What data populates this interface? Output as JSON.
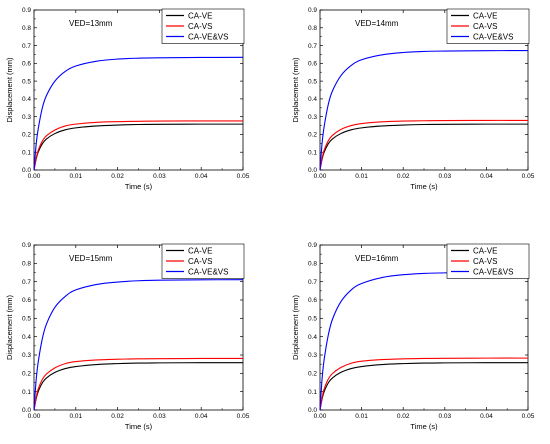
{
  "chart_data": [
    {
      "type": "line",
      "annotation": "VED=13mm",
      "xlabel": "Time (s)",
      "ylabel": "Displacement (mm)",
      "xlim": [
        0,
        0.05
      ],
      "ylim": [
        0,
        0.9
      ],
      "xticks": [
        "0.00",
        "0.01",
        "0.02",
        "0.03",
        "0.04",
        "0.05"
      ],
      "yticks": [
        "0.0",
        "0.1",
        "0.2",
        "0.3",
        "0.4",
        "0.5",
        "0.6",
        "0.7",
        "0.8",
        "0.9"
      ],
      "legend_position": "top-right",
      "series": [
        {
          "name": "CA-VE",
          "color": "#000000",
          "x": [
            0,
            0.0005,
            0.001,
            0.002,
            0.003,
            0.005,
            0.0075,
            0.01,
            0.015,
            0.02,
            0.025,
            0.03,
            0.04,
            0.05
          ],
          "y": [
            0,
            0.06,
            0.1,
            0.148,
            0.175,
            0.205,
            0.226,
            0.237,
            0.248,
            0.253,
            0.256,
            0.257,
            0.258,
            0.258
          ]
        },
        {
          "name": "CA-VS",
          "color": "#ff0000",
          "x": [
            0,
            0.0005,
            0.001,
            0.002,
            0.003,
            0.005,
            0.0075,
            0.01,
            0.015,
            0.02,
            0.025,
            0.03,
            0.04,
            0.05
          ],
          "y": [
            0,
            0.065,
            0.11,
            0.163,
            0.193,
            0.225,
            0.248,
            0.258,
            0.268,
            0.272,
            0.274,
            0.275,
            0.276,
            0.276
          ]
        },
        {
          "name": "CA-VE&VS",
          "color": "#0000ff",
          "x": [
            0,
            0.0005,
            0.001,
            0.002,
            0.003,
            0.005,
            0.0075,
            0.01,
            0.015,
            0.02,
            0.025,
            0.03,
            0.04,
            0.05
          ],
          "y": [
            0,
            0.14,
            0.23,
            0.35,
            0.42,
            0.5,
            0.555,
            0.585,
            0.612,
            0.624,
            0.629,
            0.631,
            0.633,
            0.634
          ]
        }
      ]
    },
    {
      "type": "line",
      "annotation": "VED=14mm",
      "xlabel": "Time (s)",
      "ylabel": "Displacement (mm)",
      "xlim": [
        0,
        0.05
      ],
      "ylim": [
        0,
        0.9
      ],
      "xticks": [
        "0.00",
        "0.01",
        "0.02",
        "0.03",
        "0.04",
        "0.05"
      ],
      "yticks": [
        "0.0",
        "0.1",
        "0.2",
        "0.3",
        "0.4",
        "0.5",
        "0.6",
        "0.7",
        "0.8",
        "0.9"
      ],
      "legend_position": "top-right",
      "series": [
        {
          "name": "CA-VE",
          "color": "#000000",
          "x": [
            0,
            0.0005,
            0.001,
            0.002,
            0.003,
            0.005,
            0.0075,
            0.01,
            0.015,
            0.02,
            0.025,
            0.03,
            0.04,
            0.05
          ],
          "y": [
            0,
            0.06,
            0.1,
            0.148,
            0.175,
            0.205,
            0.226,
            0.237,
            0.248,
            0.253,
            0.256,
            0.257,
            0.258,
            0.258
          ]
        },
        {
          "name": "CA-VS",
          "color": "#ff0000",
          "x": [
            0,
            0.0005,
            0.001,
            0.002,
            0.003,
            0.005,
            0.0075,
            0.01,
            0.015,
            0.02,
            0.025,
            0.03,
            0.04,
            0.05
          ],
          "y": [
            0,
            0.066,
            0.112,
            0.165,
            0.195,
            0.228,
            0.25,
            0.261,
            0.271,
            0.275,
            0.277,
            0.278,
            0.279,
            0.279
          ]
        },
        {
          "name": "CA-VE&VS",
          "color": "#0000ff",
          "x": [
            0,
            0.0005,
            0.001,
            0.002,
            0.003,
            0.005,
            0.0075,
            0.01,
            0.015,
            0.02,
            0.025,
            0.03,
            0.04,
            0.05
          ],
          "y": [
            0,
            0.15,
            0.245,
            0.37,
            0.445,
            0.53,
            0.588,
            0.62,
            0.648,
            0.661,
            0.667,
            0.669,
            0.671,
            0.672
          ]
        }
      ]
    },
    {
      "type": "line",
      "annotation": "VED=15mm",
      "xlabel": "Time (s)",
      "ylabel": "Displacement (mm)",
      "xlim": [
        0,
        0.05
      ],
      "ylim": [
        0,
        0.9
      ],
      "xticks": [
        "0.00",
        "0.01",
        "0.02",
        "0.03",
        "0.04",
        "0.05"
      ],
      "yticks": [
        "0.0",
        "0.1",
        "0.2",
        "0.3",
        "0.4",
        "0.5",
        "0.6",
        "0.7",
        "0.8",
        "0.9"
      ],
      "legend_position": "top-right",
      "series": [
        {
          "name": "CA-VE",
          "color": "#000000",
          "x": [
            0,
            0.0005,
            0.001,
            0.002,
            0.003,
            0.005,
            0.0075,
            0.01,
            0.015,
            0.02,
            0.025,
            0.03,
            0.04,
            0.05
          ],
          "y": [
            0,
            0.06,
            0.1,
            0.148,
            0.175,
            0.205,
            0.226,
            0.237,
            0.248,
            0.253,
            0.256,
            0.257,
            0.258,
            0.258
          ]
        },
        {
          "name": "CA-VS",
          "color": "#ff0000",
          "x": [
            0,
            0.0005,
            0.001,
            0.002,
            0.003,
            0.005,
            0.0075,
            0.01,
            0.015,
            0.02,
            0.025,
            0.03,
            0.04,
            0.05
          ],
          "y": [
            0,
            0.067,
            0.114,
            0.167,
            0.197,
            0.23,
            0.253,
            0.264,
            0.273,
            0.277,
            0.279,
            0.28,
            0.281,
            0.281
          ]
        },
        {
          "name": "CA-VE&VS",
          "color": "#0000ff",
          "x": [
            0,
            0.0005,
            0.001,
            0.002,
            0.003,
            0.005,
            0.0075,
            0.01,
            0.015,
            0.02,
            0.025,
            0.03,
            0.04,
            0.05
          ],
          "y": [
            0,
            0.16,
            0.26,
            0.39,
            0.47,
            0.56,
            0.62,
            0.655,
            0.685,
            0.698,
            0.705,
            0.708,
            0.71,
            0.711
          ]
        }
      ]
    },
    {
      "type": "line",
      "annotation": "VED=16mm",
      "xlabel": "Time (s)",
      "ylabel": "Displacement (mm)",
      "xlim": [
        0,
        0.05
      ],
      "ylim": [
        0,
        0.9
      ],
      "xticks": [
        "0.00",
        "0.01",
        "0.02",
        "0.03",
        "0.04",
        "0.05"
      ],
      "yticks": [
        "0.0",
        "0.1",
        "0.2",
        "0.3",
        "0.4",
        "0.5",
        "0.6",
        "0.7",
        "0.8",
        "0.9"
      ],
      "legend_position": "top-right",
      "series": [
        {
          "name": "CA-VE",
          "color": "#000000",
          "x": [
            0,
            0.0005,
            0.001,
            0.002,
            0.003,
            0.005,
            0.0075,
            0.01,
            0.015,
            0.02,
            0.025,
            0.03,
            0.04,
            0.05
          ],
          "y": [
            0,
            0.06,
            0.1,
            0.148,
            0.175,
            0.205,
            0.226,
            0.237,
            0.248,
            0.253,
            0.256,
            0.257,
            0.258,
            0.258
          ]
        },
        {
          "name": "CA-VS",
          "color": "#ff0000",
          "x": [
            0,
            0.0005,
            0.001,
            0.002,
            0.003,
            0.005,
            0.0075,
            0.01,
            0.015,
            0.02,
            0.025,
            0.03,
            0.04,
            0.05
          ],
          "y": [
            0,
            0.068,
            0.115,
            0.169,
            0.199,
            0.232,
            0.255,
            0.266,
            0.275,
            0.279,
            0.281,
            0.282,
            0.283,
            0.283
          ]
        },
        {
          "name": "CA-VE&VS",
          "color": "#0000ff",
          "x": [
            0,
            0.0005,
            0.001,
            0.002,
            0.003,
            0.005,
            0.0075,
            0.01,
            0.015,
            0.02,
            0.025,
            0.03,
            0.04,
            0.05
          ],
          "y": [
            0,
            0.17,
            0.275,
            0.41,
            0.495,
            0.59,
            0.655,
            0.69,
            0.723,
            0.738,
            0.745,
            0.748,
            0.751,
            0.752
          ]
        }
      ]
    }
  ]
}
